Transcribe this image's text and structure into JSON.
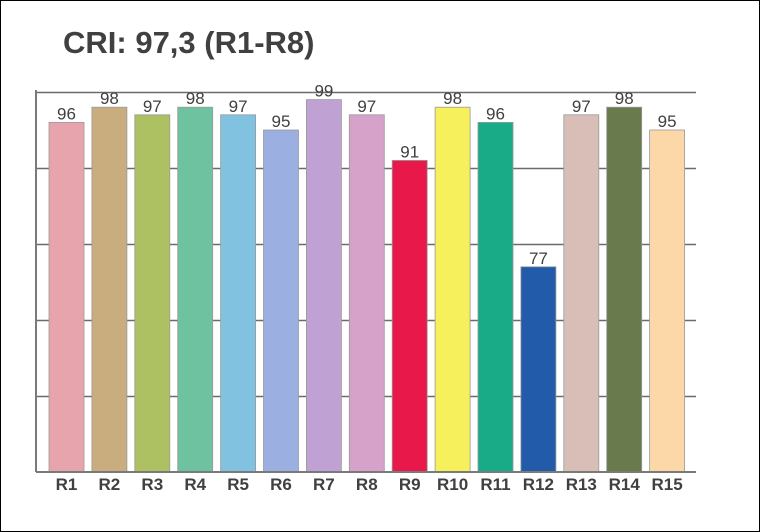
{
  "chart_data": {
    "type": "bar",
    "title": "CRI: 97,3 (R1-R8)",
    "xlabel": "",
    "ylabel": "",
    "ylim": [
      50,
      100
    ],
    "grid": true,
    "show_value_labels": true,
    "categories": [
      "R1",
      "R2",
      "R3",
      "R4",
      "R5",
      "R6",
      "R7",
      "R8",
      "R9",
      "R10",
      "R11",
      "R12",
      "R13",
      "R14",
      "R15"
    ],
    "values": [
      96,
      98,
      97,
      98,
      97,
      95,
      99,
      97,
      91,
      98,
      96,
      77,
      97,
      98,
      95
    ],
    "colors": [
      "#e8a4ac",
      "#c9ad7e",
      "#adc062",
      "#6ec29f",
      "#80c2e0",
      "#9bb0e0",
      "#c0a1d3",
      "#d7a2ca",
      "#e8194a",
      "#f5f05c",
      "#19ab88",
      "#235bab",
      "#d9bdb7",
      "#697b4d",
      "#fcd8a8"
    ]
  }
}
